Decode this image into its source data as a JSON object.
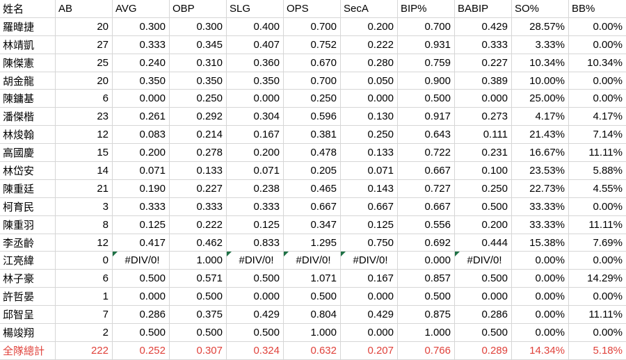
{
  "table": {
    "columns": [
      "姓名",
      "AB",
      "AVG",
      "OBP",
      "SLG",
      "OPS",
      "SecA",
      "BIP%",
      "BABIP",
      "SO%",
      "BB%"
    ],
    "error_value": "#DIV/0!",
    "rows": [
      {
        "cells": [
          "羅暐捷",
          "20",
          "0.300",
          "0.300",
          "0.400",
          "0.700",
          "0.200",
          "0.700",
          "0.429",
          "28.57%",
          "0.00%"
        ]
      },
      {
        "cells": [
          "林靖凱",
          "27",
          "0.333",
          "0.345",
          "0.407",
          "0.752",
          "0.222",
          "0.931",
          "0.333",
          "3.33%",
          "0.00%"
        ]
      },
      {
        "cells": [
          "陳傑憲",
          "25",
          "0.240",
          "0.310",
          "0.360",
          "0.670",
          "0.280",
          "0.759",
          "0.227",
          "10.34%",
          "10.34%"
        ]
      },
      {
        "cells": [
          "胡金龍",
          "20",
          "0.350",
          "0.350",
          "0.350",
          "0.700",
          "0.050",
          "0.900",
          "0.389",
          "10.00%",
          "0.00%"
        ]
      },
      {
        "cells": [
          "陳鏞基",
          "6",
          "0.000",
          "0.250",
          "0.000",
          "0.250",
          "0.000",
          "0.500",
          "0.000",
          "25.00%",
          "0.00%"
        ]
      },
      {
        "cells": [
          "潘傑楷",
          "23",
          "0.261",
          "0.292",
          "0.304",
          "0.596",
          "0.130",
          "0.917",
          "0.273",
          "4.17%",
          "4.17%"
        ]
      },
      {
        "cells": [
          "林焌翰",
          "12",
          "0.083",
          "0.214",
          "0.167",
          "0.381",
          "0.250",
          "0.643",
          "0.111",
          "21.43%",
          "7.14%"
        ]
      },
      {
        "cells": [
          "高國慶",
          "15",
          "0.200",
          "0.278",
          "0.200",
          "0.478",
          "0.133",
          "0.722",
          "0.231",
          "16.67%",
          "11.11%"
        ]
      },
      {
        "cells": [
          "林岱安",
          "14",
          "0.071",
          "0.133",
          "0.071",
          "0.205",
          "0.071",
          "0.667",
          "0.100",
          "23.53%",
          "5.88%"
        ]
      },
      {
        "cells": [
          "陳重廷",
          "21",
          "0.190",
          "0.227",
          "0.238",
          "0.465",
          "0.143",
          "0.727",
          "0.250",
          "22.73%",
          "4.55%"
        ]
      },
      {
        "cells": [
          "柯育民",
          "3",
          "0.333",
          "0.333",
          "0.333",
          "0.667",
          "0.667",
          "0.667",
          "0.500",
          "33.33%",
          "0.00%"
        ]
      },
      {
        "cells": [
          "陳重羽",
          "8",
          "0.125",
          "0.222",
          "0.125",
          "0.347",
          "0.125",
          "0.556",
          "0.200",
          "33.33%",
          "11.11%"
        ]
      },
      {
        "cells": [
          "李丞齡",
          "12",
          "0.417",
          "0.462",
          "0.833",
          "1.295",
          "0.750",
          "0.692",
          "0.444",
          "15.38%",
          "7.69%"
        ]
      },
      {
        "cells": [
          "江亮緯",
          "0",
          "#DIV/0!",
          "1.000",
          "#DIV/0!",
          "#DIV/0!",
          "#DIV/0!",
          "0.000",
          "#DIV/0!",
          "0.00%",
          "0.00%"
        ]
      },
      {
        "cells": [
          "林子豪",
          "6",
          "0.500",
          "0.571",
          "0.500",
          "1.071",
          "0.167",
          "0.857",
          "0.500",
          "0.00%",
          "14.29%"
        ]
      },
      {
        "cells": [
          "許哲晏",
          "1",
          "0.000",
          "0.500",
          "0.000",
          "0.500",
          "0.000",
          "0.500",
          "0.000",
          "0.00%",
          "0.00%"
        ]
      },
      {
        "cells": [
          "邱智呈",
          "7",
          "0.286",
          "0.375",
          "0.429",
          "0.804",
          "0.429",
          "0.875",
          "0.286",
          "0.00%",
          "11.11%"
        ]
      },
      {
        "cells": [
          "楊竣翔",
          "2",
          "0.500",
          "0.500",
          "0.500",
          "1.000",
          "0.000",
          "1.000",
          "0.500",
          "0.00%",
          "0.00%"
        ]
      }
    ],
    "total_row": {
      "cells": [
        "全隊總計",
        "222",
        "0.252",
        "0.307",
        "0.324",
        "0.632",
        "0.207",
        "0.766",
        "0.289",
        "14.34%",
        "5.18%"
      ]
    }
  },
  "colors": {
    "total_text": "#e0413a",
    "gridline": "#d6d6d6",
    "error_flag_green": "#1e7145"
  }
}
